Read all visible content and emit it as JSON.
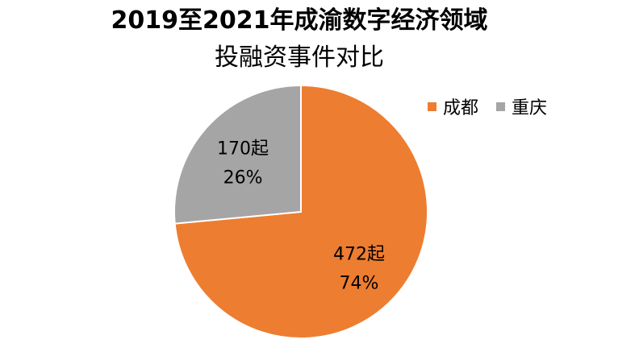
{
  "chart_data": {
    "type": "pie",
    "title_lines": [
      "2019至2021年成渝数字经济领域",
      "投融资事件对比"
    ],
    "categories": [
      "成都",
      "重庆"
    ],
    "values": [
      472,
      170
    ],
    "value_labels": [
      "472起",
      "170起"
    ],
    "percent_labels": [
      "74%",
      "26%"
    ],
    "colors": [
      "#ED7D31",
      "#A5A5A5"
    ],
    "legend_position": "top-right"
  }
}
